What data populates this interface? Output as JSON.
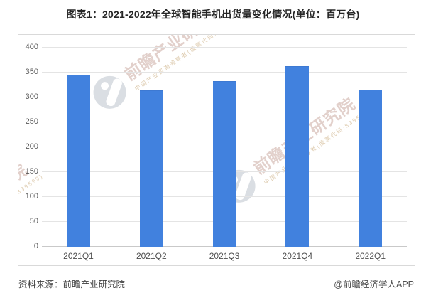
{
  "title": "图表1：2021-2022年全球智能手机出货量变化情况(单位：百万台)",
  "chart_data": {
    "type": "bar",
    "categories": [
      "2021Q1",
      "2021Q2",
      "2021Q3",
      "2021Q4",
      "2022Q1"
    ],
    "values": [
      345,
      313,
      331,
      362,
      314
    ],
    "title": "图表1：2021-2022年全球智能手机出货量变化情况(单位：百万台)",
    "xlabel": "",
    "ylabel": "",
    "unit": "百万台",
    "ylim": [
      0,
      400
    ],
    "ytick_step": 50,
    "yticks": [
      400,
      350,
      300,
      250,
      200,
      150,
      100,
      50,
      0
    ],
    "grid": true,
    "legend": "none",
    "bar_color": "#4181de",
    "gridline_color": "#e4e4e4",
    "label_color": "#595959"
  },
  "footer": {
    "source": "资料来源：前瞻产业研究院",
    "credit": "@前瞻经济学人APP"
  },
  "watermark": {
    "brand": "前瞻产业研究院",
    "tagline": "中国产业咨询领导者(股票代码:839599)"
  }
}
